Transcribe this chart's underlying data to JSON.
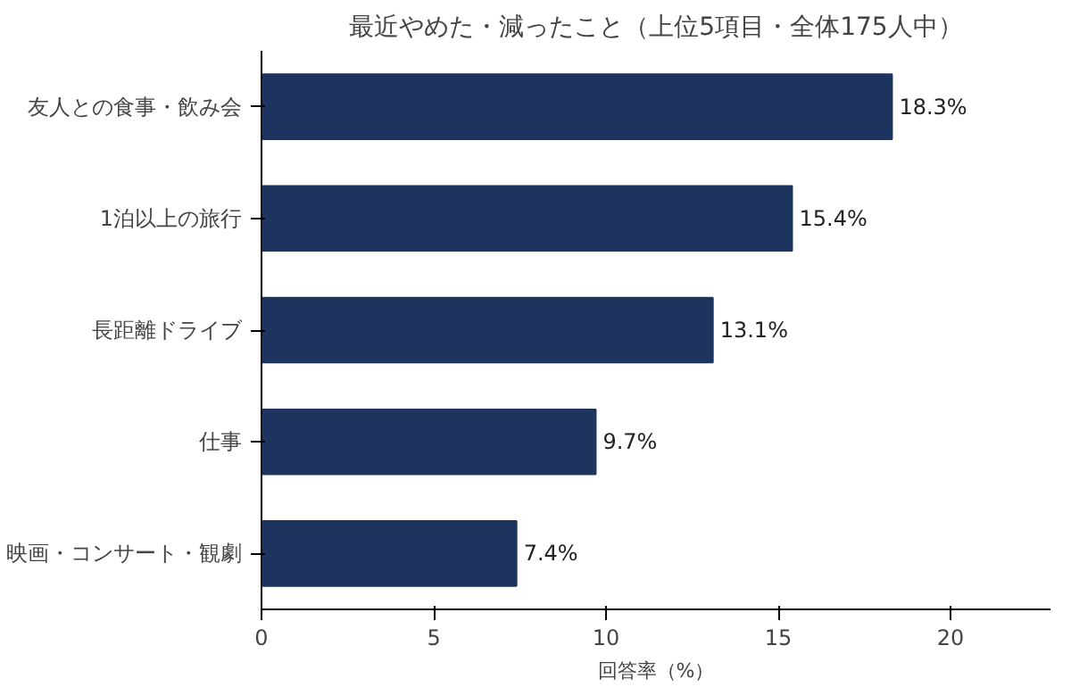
{
  "chart_data": {
    "type": "bar",
    "orientation": "horizontal",
    "title": "最近やめた・減ったこと（上位5項目・全体175人中）",
    "xlabel": "回答率（%）",
    "categories": [
      "友人との食事・飲み会",
      "1泊以上の旅行",
      "長距離ドライブ",
      "仕事",
      "映画・コンサート・観劇"
    ],
    "values": [
      18.3,
      15.4,
      13.1,
      9.7,
      7.4
    ],
    "value_labels": [
      "18.3%",
      "15.4%",
      "13.1%",
      "9.7%",
      "7.4%"
    ],
    "color": "#1d355e",
    "xlim": [
      0,
      22.9
    ],
    "xticks": [
      0,
      5,
      10,
      15,
      20
    ],
    "grid": false
  }
}
